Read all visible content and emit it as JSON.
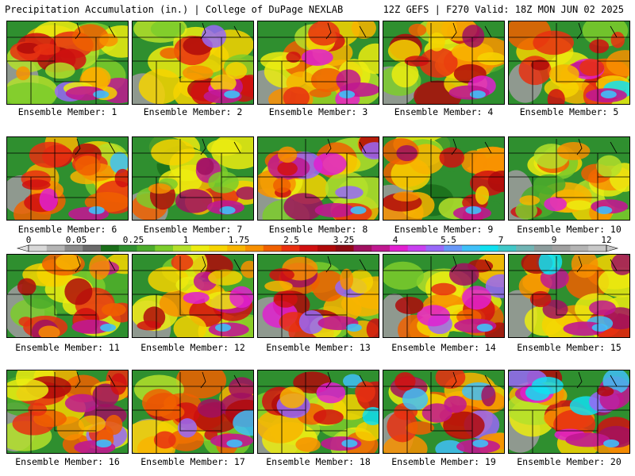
{
  "header": {
    "left_title": "Precipitation Accumulation (in.) | College of DuPage NEXLAB",
    "right_title": "12Z GEFS | F270 Valid: 18Z MON JUN 02 2025"
  },
  "panels": [
    {
      "label": "Ensemble Member: 1",
      "intensity": 0.5
    },
    {
      "label": "Ensemble Member: 2",
      "intensity": 0.4
    },
    {
      "label": "Ensemble Member: 3",
      "intensity": 0.55
    },
    {
      "label": "Ensemble Member: 4",
      "intensity": 0.55
    },
    {
      "label": "Ensemble Member: 5",
      "intensity": 0.6
    },
    {
      "label": "Ensemble Member: 6",
      "intensity": 0.55
    },
    {
      "label": "Ensemble Member: 7",
      "intensity": 0.35
    },
    {
      "label": "Ensemble Member: 8",
      "intensity": 0.55
    },
    {
      "label": "Ensemble Member: 9",
      "intensity": 0.4
    },
    {
      "label": "Ensemble Member: 10",
      "intensity": 0.35
    },
    {
      "label": "Ensemble Member: 11",
      "intensity": 0.5
    },
    {
      "label": "Ensemble Member: 12",
      "intensity": 0.55
    },
    {
      "label": "Ensemble Member: 13",
      "intensity": 0.55
    },
    {
      "label": "Ensemble Member: 14",
      "intensity": 0.65
    },
    {
      "label": "Ensemble Member: 15",
      "intensity": 0.7
    },
    {
      "label": "Ensemble Member: 16",
      "intensity": 0.6
    },
    {
      "label": "Ensemble Member: 17",
      "intensity": 0.7
    },
    {
      "label": "Ensemble Member: 18",
      "intensity": 0.55
    },
    {
      "label": "Ensemble Member: 19",
      "intensity": 0.75
    },
    {
      "label": "Ensemble Member: 20",
      "intensity": 0.8
    }
  ],
  "colorbar": {
    "tick_labels": [
      "0",
      "0.05",
      "0.25",
      "1",
      "1.75",
      "2.5",
      "3.25",
      "4",
      "5.5",
      "7",
      "9",
      "12"
    ],
    "colors": [
      "#d8d8d8",
      "#b4b4b4",
      "#8c8c8c",
      "#6a6a6a",
      "#1a6e1a",
      "#2f8f2f",
      "#4cac2c",
      "#7ccd2c",
      "#b4e02a",
      "#ecec10",
      "#f6d400",
      "#f8b400",
      "#f89000",
      "#f06000",
      "#e83010",
      "#d01010",
      "#b00a0a",
      "#8e0a14",
      "#a01060",
      "#c01890",
      "#e020d0",
      "#c840f0",
      "#9868f8",
      "#6898f8",
      "#40c0f8",
      "#10e0f0",
      "#40c8c8",
      "#70b4b4",
      "#8c9c9c",
      "#a0a0a0",
      "#b4b4b4",
      "#c8c8c8"
    ]
  }
}
